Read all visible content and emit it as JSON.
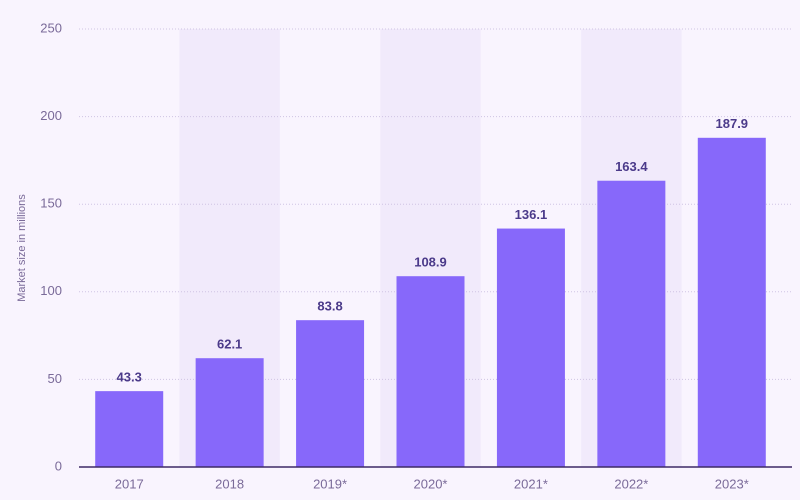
{
  "chart_data": {
    "type": "bar",
    "y_label": "Market size in millions",
    "categories": [
      "2017",
      "2018",
      "2019*",
      "2020*",
      "2021*",
      "2022*",
      "2023*"
    ],
    "values": [
      43.3,
      62.1,
      83.8,
      108.9,
      136.1,
      163.4,
      187.9
    ],
    "color": "#8768fa",
    "ylim": [
      0,
      250
    ],
    "yticks": [
      0,
      50,
      100,
      150,
      200,
      250
    ],
    "grid": true
  }
}
